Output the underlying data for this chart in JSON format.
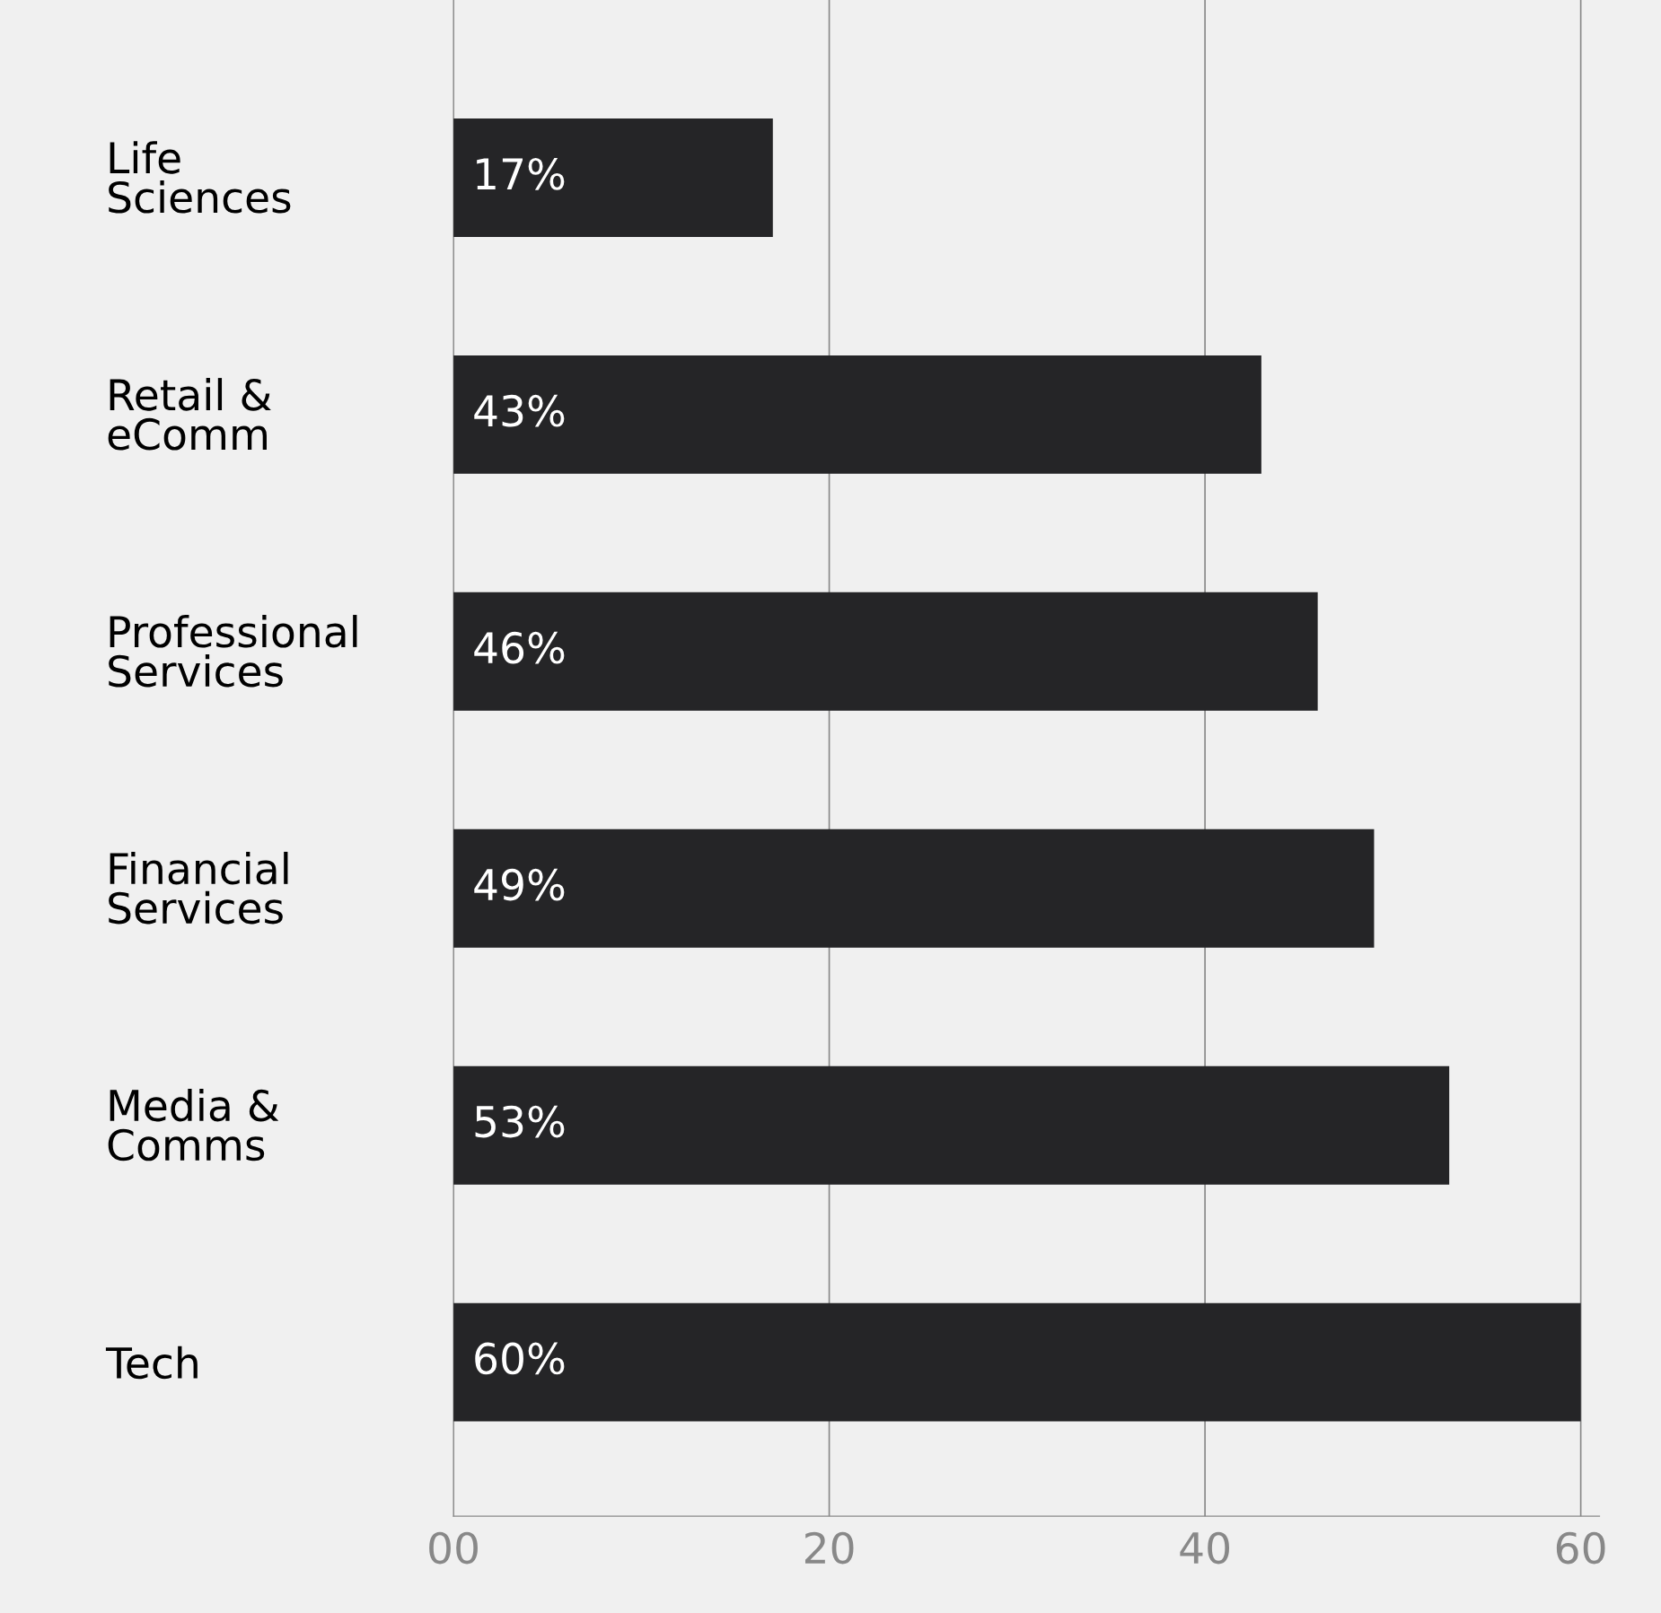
{
  "chart_data": {
    "type": "bar",
    "orientation": "horizontal",
    "categories": [
      "Life\nSciences",
      "Retail &\neComm",
      "Professional\nServices",
      "Financial\nServices",
      "Media &\nComms",
      "Tech"
    ],
    "values": [
      17,
      43,
      46,
      49,
      53,
      60
    ],
    "value_labels": [
      "17%",
      "43%",
      "46%",
      "49%",
      "53%",
      "60%"
    ],
    "color": "#252527",
    "xlim": [
      0,
      61
    ],
    "xticks": [
      {
        "value": 0,
        "label": "00"
      },
      20,
      40,
      60
    ],
    "grid": "x"
  }
}
